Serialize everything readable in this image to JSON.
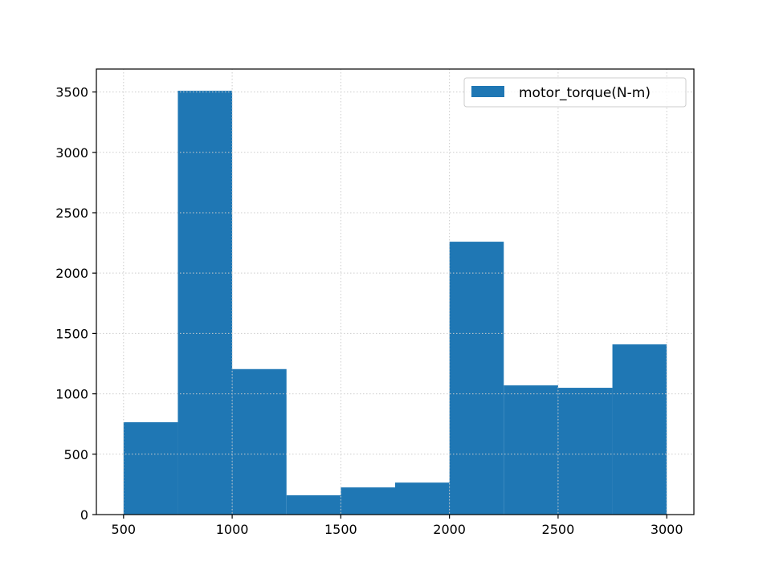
{
  "chart_data": {
    "type": "bar",
    "bin_edges": [
      500,
      750,
      1000,
      1250,
      1500,
      1750,
      2000,
      2250,
      2500,
      2750,
      3000
    ],
    "series": [
      {
        "name": "motor_torque(N-m)",
        "values": [
          765,
          3510,
          1205,
          160,
          225,
          265,
          2260,
          1070,
          1050,
          1410
        ]
      }
    ],
    "title": "",
    "xlabel": "",
    "ylabel": "",
    "xlim": [
      375,
      3125
    ],
    "ylim": [
      0,
      3690
    ],
    "x_ticks": [
      500,
      1000,
      1500,
      2000,
      2500,
      3000
    ],
    "y_ticks": [
      0,
      500,
      1000,
      1500,
      2000,
      2500,
      3000,
      3500
    ],
    "grid": true,
    "legend_position": "upper-right",
    "bar_color": "#1f77b4",
    "grid_color": "#cccccc"
  }
}
